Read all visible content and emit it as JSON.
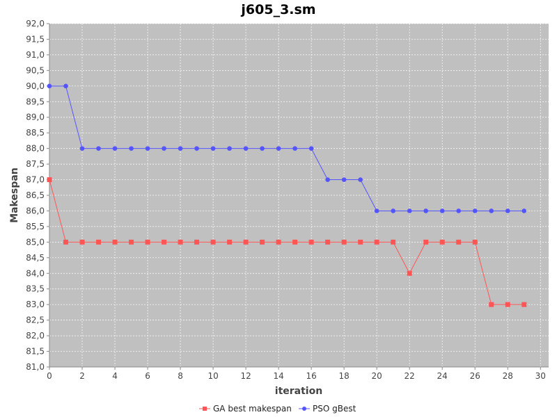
{
  "colors": {
    "plot_background": "#c0c0c0",
    "gridline": "#ffffff",
    "ga_series": "#ff5555",
    "pso_series": "#5555ff",
    "axis": "#888888"
  },
  "chart_data": {
    "type": "line",
    "title": "j605_3.sm",
    "xlabel": "iteration",
    "ylabel": "Makespan",
    "xlim": [
      0,
      30.5
    ],
    "ylim": [
      81.0,
      92.0
    ],
    "x_ticks": [
      0,
      2,
      4,
      6,
      8,
      10,
      12,
      14,
      16,
      18,
      20,
      22,
      24,
      26,
      28,
      30
    ],
    "y_ticks": [
      "81,0",
      "81,5",
      "82,0",
      "82,5",
      "83,0",
      "83,5",
      "84,0",
      "84,5",
      "85,0",
      "85,5",
      "86,0",
      "86,5",
      "87,0",
      "87,5",
      "88,0",
      "88,5",
      "89,0",
      "89,5",
      "90,0",
      "90,5",
      "91,0",
      "91,5",
      "92,0"
    ],
    "y_tick_values": [
      81.0,
      81.5,
      82.0,
      82.5,
      83.0,
      83.5,
      84.0,
      84.5,
      85.0,
      85.5,
      86.0,
      86.5,
      87.0,
      87.5,
      88.0,
      88.5,
      89.0,
      89.5,
      90.0,
      90.5,
      91.0,
      91.5,
      92.0
    ],
    "grid": true,
    "legend_position": "bottom",
    "series": [
      {
        "name": "GA best makespan",
        "marker": "square",
        "x": [
          0,
          1,
          2,
          3,
          4,
          5,
          6,
          7,
          8,
          9,
          10,
          11,
          12,
          13,
          14,
          15,
          16,
          17,
          18,
          19,
          20,
          21,
          22,
          23,
          24,
          25,
          26,
          27,
          28,
          29
        ],
        "values": [
          87,
          85,
          85,
          85,
          85,
          85,
          85,
          85,
          85,
          85,
          85,
          85,
          85,
          85,
          85,
          85,
          85,
          85,
          85,
          85,
          85,
          85,
          84,
          85,
          85,
          85,
          85,
          83,
          83,
          83
        ]
      },
      {
        "name": "PSO gBest",
        "marker": "circle",
        "x": [
          0,
          1,
          2,
          3,
          4,
          5,
          6,
          7,
          8,
          9,
          10,
          11,
          12,
          13,
          14,
          15,
          16,
          17,
          18,
          19,
          20,
          21,
          22,
          23,
          24,
          25,
          26,
          27,
          28,
          29
        ],
        "values": [
          90,
          90,
          88,
          88,
          88,
          88,
          88,
          88,
          88,
          88,
          88,
          88,
          88,
          88,
          88,
          88,
          88,
          87,
          87,
          87,
          86,
          86,
          86,
          86,
          86,
          86,
          86,
          86,
          86,
          86
        ]
      }
    ]
  }
}
